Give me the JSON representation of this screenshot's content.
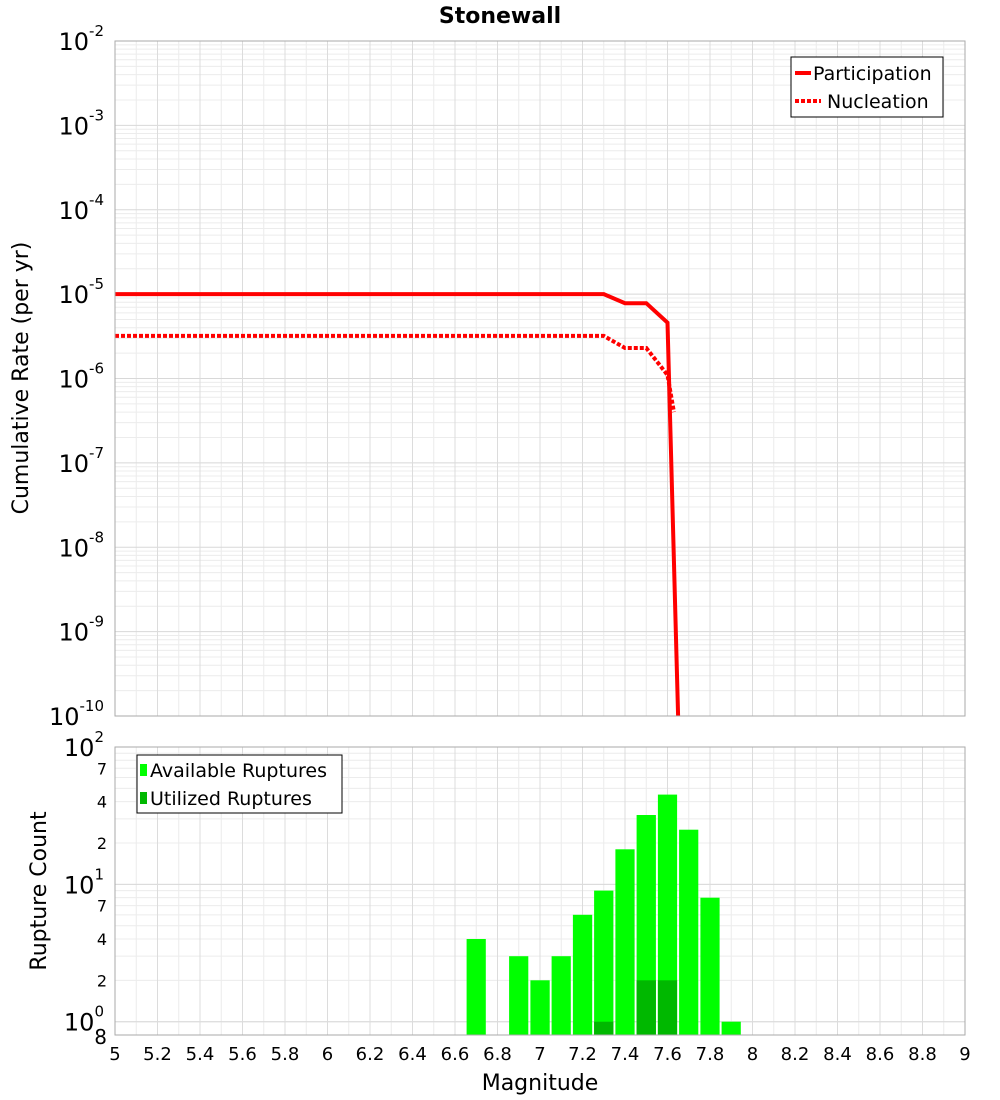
{
  "chart_data": [
    {
      "type": "line",
      "title": "Stonewall",
      "xlabel": "",
      "ylabel": "Cumulative Rate (per yr)",
      "xlim": [
        5,
        9
      ],
      "ylim": [
        1e-10,
        0.01
      ],
      "yscale": "log",
      "y_ticks": [
        {
          "base": "10",
          "exp": "-2"
        },
        {
          "base": "10",
          "exp": "-3"
        },
        {
          "base": "10",
          "exp": "-4"
        },
        {
          "base": "10",
          "exp": "-5"
        },
        {
          "base": "10",
          "exp": "-6"
        },
        {
          "base": "10",
          "exp": "-7"
        },
        {
          "base": "10",
          "exp": "-8"
        },
        {
          "base": "10",
          "exp": "-9"
        },
        {
          "base": "10",
          "exp": "-10"
        }
      ],
      "grid": true,
      "legend_position": "top-right",
      "series": [
        {
          "name": "Participation",
          "color": "#ff0000",
          "style": "solid",
          "x": [
            5.0,
            7.3,
            7.4,
            7.5,
            7.6,
            7.65
          ],
          "y": [
            1e-05,
            1e-05,
            7.8e-06,
            7.8e-06,
            4.6e-06,
            1e-10
          ]
        },
        {
          "name": "Nucleation",
          "color": "#ff0000",
          "style": "dotted",
          "x": [
            5.0,
            7.3,
            7.4,
            7.5,
            7.6,
            7.63
          ],
          "y": [
            3.2e-06,
            3.2e-06,
            2.3e-06,
            2.3e-06,
            1.1e-06,
            4e-07
          ]
        }
      ]
    },
    {
      "type": "bar",
      "title": "",
      "xlabel": "Magnitude",
      "ylabel": "Rupture Count",
      "xlim": [
        5,
        9
      ],
      "ylim": [
        0.8,
        100
      ],
      "yscale": "log",
      "x_ticks": [
        "5",
        "5.2",
        "5.4",
        "5.6",
        "5.8",
        "6",
        "6.2",
        "6.4",
        "6.6",
        "6.8",
        "7",
        "7.2",
        "7.4",
        "7.6",
        "7.8",
        "8",
        "8.2",
        "8.4",
        "8.6",
        "8.8",
        "9"
      ],
      "y_major_ticks": [
        {
          "base": "10",
          "exp": "2"
        },
        {
          "base": "10",
          "exp": "1"
        },
        {
          "base": "10",
          "exp": "0"
        }
      ],
      "y_minor_tick_labels": [
        "7",
        "4",
        "2",
        "7",
        "4",
        "2",
        "8"
      ],
      "grid": true,
      "legend_position": "top-left",
      "bar_width": 0.1,
      "series": [
        {
          "name": "Available Ruptures",
          "color": "#00ff00",
          "x": [
            6.7,
            6.9,
            7.0,
            7.1,
            7.2,
            7.3,
            7.4,
            7.5,
            7.6,
            7.7,
            7.8,
            7.9
          ],
          "values": [
            4,
            3,
            2,
            3,
            6,
            9,
            18,
            32,
            45,
            25,
            8,
            1
          ]
        },
        {
          "name": "Utilized Ruptures",
          "color": "#00b800",
          "x": [
            7.3,
            7.5,
            7.6
          ],
          "values": [
            1,
            2,
            2
          ]
        }
      ]
    }
  ]
}
